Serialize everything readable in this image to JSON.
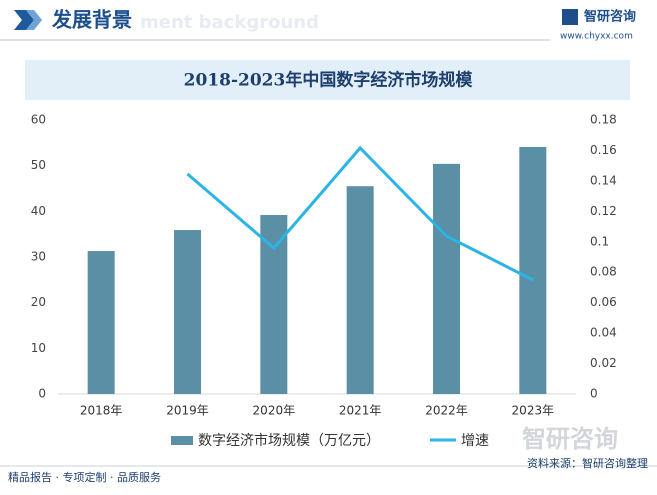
{
  "header": {
    "title": "发展背景",
    "subtitle": "ment background",
    "brand": "智研咨询",
    "url": "www.chyxx.com"
  },
  "chart_data": {
    "type": "bar",
    "title": "2018-2023年中国数字经济市场规模",
    "categories": [
      "2018年",
      "2019年",
      "2020年",
      "2021年",
      "2022年",
      "2023年"
    ],
    "series": [
      {
        "name": "数字经济市场规模（万亿元）",
        "color": "#5b8fa6",
        "type": "bar",
        "values": [
          31.3,
          35.9,
          39.2,
          45.5,
          50.4,
          54.1
        ]
      },
      {
        "name": "增速",
        "color": "#2bb4e6",
        "type": "line",
        "axis": "y2",
        "values": [
          null,
          0.1445,
          0.0959,
          0.1616,
          0.1038,
          0.0749
        ]
      }
    ],
    "ylim": [
      0,
      60
    ],
    "yticks": [
      0,
      10,
      20,
      30,
      40,
      50,
      60
    ],
    "y2lim": [
      0,
      0.18
    ],
    "y2ticks": [
      0,
      0.02,
      0.04,
      0.06,
      0.08,
      0.1,
      0.12,
      0.14,
      0.16,
      0.18
    ],
    "grid": false,
    "legend": "bottom",
    "watermark": "智研咨询"
  },
  "footer": {
    "left": "精品报告 · 专项定制 · 品质服务",
    "source": "资料来源：智研咨询整理"
  }
}
